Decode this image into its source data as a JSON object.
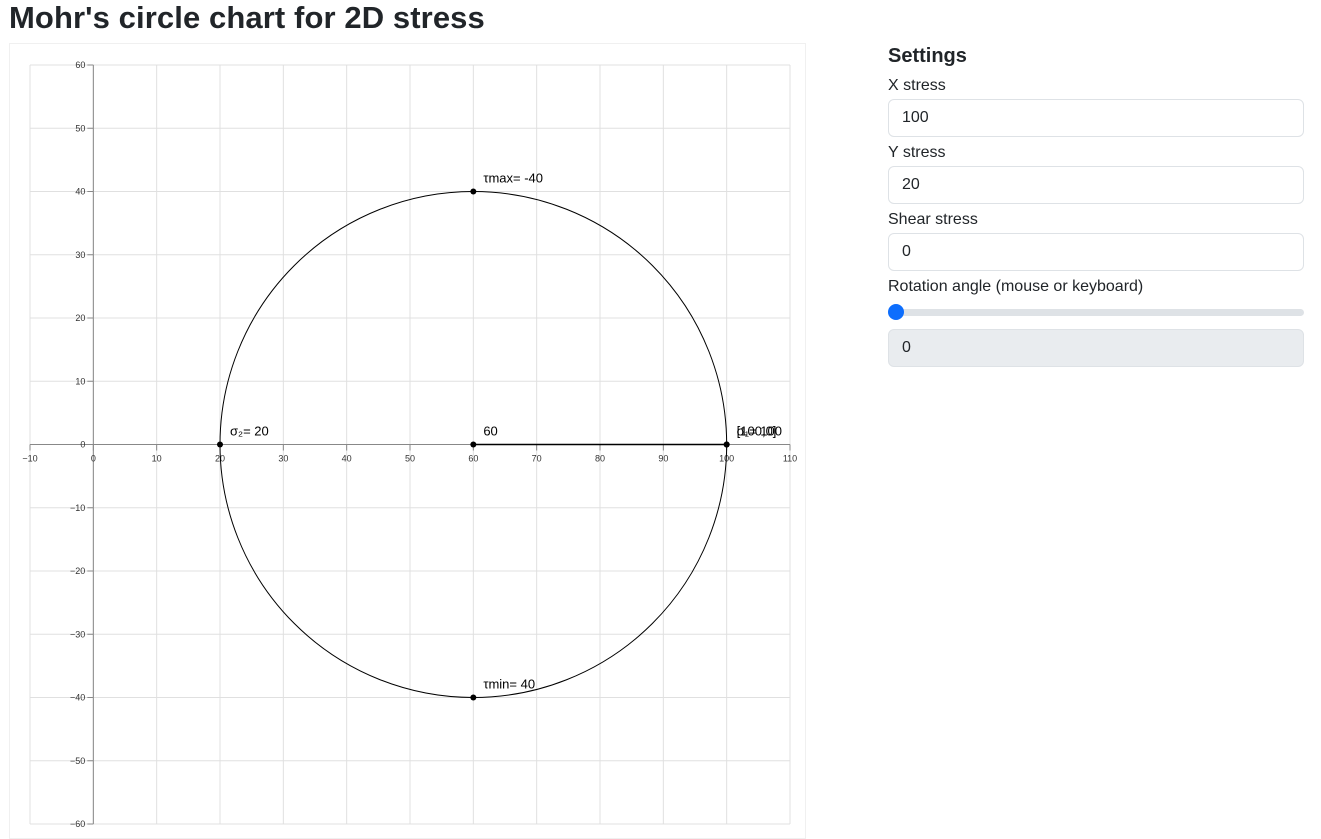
{
  "page": {
    "title": "Mohr's circle chart for 2D stress"
  },
  "settings": {
    "heading": "Settings",
    "x_stress": {
      "label": "X stress",
      "value": "100"
    },
    "y_stress": {
      "label": "Y stress",
      "value": "20"
    },
    "shear_stress": {
      "label": "Shear stress",
      "value": "0"
    },
    "rotation": {
      "label": "Rotation angle (mouse or keyboard)",
      "slider_fraction": 0,
      "value": "0"
    }
  },
  "colors": {
    "accent": "#0d6efd",
    "grid": "#e0e0e0",
    "axis": "#888888",
    "stroke": "#000000"
  },
  "chart_data": {
    "type": "scatter",
    "xlim": [
      -10,
      110
    ],
    "ylim": [
      -60,
      60
    ],
    "x_ticks": [
      -10,
      0,
      10,
      20,
      30,
      40,
      50,
      60,
      70,
      80,
      90,
      100,
      110
    ],
    "y_ticks": [
      60,
      50,
      40,
      30,
      20,
      10,
      0,
      -10,
      -20,
      -30,
      -40,
      -50,
      -60
    ],
    "grid": true,
    "circle": {
      "center": [
        60,
        0
      ],
      "radius": 40
    },
    "segment": {
      "from": [
        60,
        0
      ],
      "to": [
        100,
        0
      ]
    },
    "points": [
      {
        "id": "tau-max",
        "x": 60,
        "y": 40,
        "label": "τmax= -40"
      },
      {
        "id": "tau-min",
        "x": 60,
        "y": -40,
        "label": "τmin= 40"
      },
      {
        "id": "sigma-2",
        "x": 20,
        "y": 0,
        "label": "σ₂= 20"
      },
      {
        "id": "center",
        "x": 60,
        "y": 0,
        "label": "60"
      },
      {
        "id": "sigma-1",
        "x": 100,
        "y": 0,
        "label": "σ₁= 100"
      },
      {
        "id": "stress-point",
        "x": 100,
        "y": 0,
        "label": "[100,0]"
      }
    ]
  }
}
